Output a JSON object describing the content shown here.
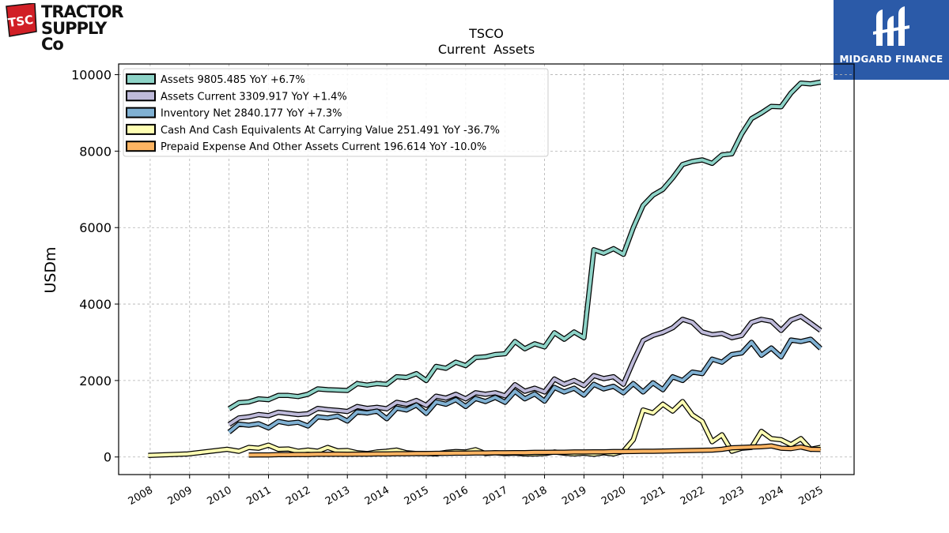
{
  "logos": {
    "tractor_supply": {
      "badge": "TSC",
      "line1": "TRACTOR",
      "line2": "SUPPLY Co"
    },
    "midgard": {
      "name": "MIDGARD FINANCE",
      "color": "#2b5aa8"
    }
  },
  "chart_data": {
    "type": "line",
    "title": "TSCO",
    "subtitle": "Current  Assets",
    "ylabel": "USDm",
    "xlabel": "",
    "xlim": [
      2007.2,
      2025.85
    ],
    "ylim": [
      -460,
      10280
    ],
    "yticks": [
      0,
      2000,
      4000,
      6000,
      8000,
      10000
    ],
    "xticks": [
      "2008",
      "2009",
      "2010",
      "2011",
      "2012",
      "2013",
      "2014",
      "2015",
      "2016",
      "2017",
      "2018",
      "2019",
      "2020",
      "2021",
      "2022",
      "2023",
      "2024",
      "2025"
    ],
    "grid": true,
    "legend_position": "top-left",
    "series": [
      {
        "name": "Assets  9805.485 YoY +6.7%",
        "color": "#8dd3c7",
        "x": [
          2010.0,
          2010.25,
          2010.5,
          2010.75,
          2011.0,
          2011.25,
          2011.5,
          2011.75,
          2012.0,
          2012.25,
          2012.5,
          2012.75,
          2013.0,
          2013.25,
          2013.5,
          2013.75,
          2014.0,
          2014.25,
          2014.5,
          2014.75,
          2015.0,
          2015.25,
          2015.5,
          2015.75,
          2016.0,
          2016.25,
          2016.5,
          2016.75,
          2017.0,
          2017.25,
          2017.5,
          2017.75,
          2018.0,
          2018.25,
          2018.5,
          2018.75,
          2019.0,
          2019.25,
          2019.5,
          2019.75,
          2020.0,
          2020.25,
          2020.5,
          2020.75,
          2021.0,
          2021.25,
          2021.5,
          2021.75,
          2022.0,
          2022.25,
          2022.5,
          2022.75,
          2023.0,
          2023.25,
          2023.5,
          2023.75,
          2024.0,
          2024.25,
          2024.5,
          2024.75,
          2025.0
        ],
        "y": [
          1260,
          1420,
          1440,
          1520,
          1500,
          1610,
          1610,
          1580,
          1640,
          1780,
          1760,
          1750,
          1740,
          1920,
          1880,
          1920,
          1900,
          2100,
          2080,
          2180,
          2000,
          2370,
          2320,
          2480,
          2390,
          2600,
          2620,
          2680,
          2700,
          3020,
          2830,
          2960,
          2880,
          3250,
          3080,
          3270,
          3120,
          5420,
          5330,
          5450,
          5300,
          6000,
          6580,
          6850,
          7000,
          7300,
          7650,
          7730,
          7770,
          7680,
          7900,
          7930,
          8450,
          8850,
          9000,
          9170,
          9160,
          9520,
          9780,
          9760,
          9805
        ]
      },
      {
        "name": "Assets Current  3309.917 YoY +1.4%",
        "color": "#bebada",
        "x": [
          2010.0,
          2010.25,
          2010.5,
          2010.75,
          2011.0,
          2011.25,
          2011.5,
          2011.75,
          2012.0,
          2012.25,
          2012.5,
          2012.75,
          2013.0,
          2013.25,
          2013.5,
          2013.75,
          2014.0,
          2014.25,
          2014.5,
          2014.75,
          2015.0,
          2015.25,
          2015.5,
          2015.75,
          2016.0,
          2016.25,
          2016.5,
          2016.75,
          2017.0,
          2017.25,
          2017.5,
          2017.75,
          2018.0,
          2018.25,
          2018.5,
          2018.75,
          2019.0,
          2019.25,
          2019.5,
          2019.75,
          2020.0,
          2020.25,
          2020.5,
          2020.75,
          2021.0,
          2021.25,
          2021.5,
          2021.75,
          2022.0,
          2022.25,
          2022.5,
          2022.75,
          2023.0,
          2023.25,
          2023.5,
          2023.75,
          2024.0,
          2024.25,
          2024.5,
          2024.75,
          2025.0
        ],
        "y": [
          850,
          1020,
          1050,
          1110,
          1080,
          1170,
          1140,
          1110,
          1130,
          1270,
          1240,
          1220,
          1190,
          1320,
          1270,
          1300,
          1260,
          1430,
          1380,
          1480,
          1350,
          1590,
          1540,
          1640,
          1520,
          1680,
          1640,
          1680,
          1600,
          1890,
          1720,
          1800,
          1700,
          2040,
          1900,
          2000,
          1870,
          2130,
          2050,
          2100,
          1900,
          2500,
          3050,
          3180,
          3260,
          3380,
          3600,
          3520,
          3270,
          3200,
          3230,
          3120,
          3180,
          3520,
          3600,
          3550,
          3310,
          3580,
          3680,
          3500,
          3310
        ]
      },
      {
        "name": "Inventory Net  2840.177 YoY +7.3%",
        "color": "#80b1d3",
        "x": [
          2010.0,
          2010.25,
          2010.5,
          2010.75,
          2011.0,
          2011.25,
          2011.5,
          2011.75,
          2012.0,
          2012.25,
          2012.5,
          2012.75,
          2013.0,
          2013.25,
          2013.5,
          2013.75,
          2014.0,
          2014.25,
          2014.5,
          2014.75,
          2015.0,
          2015.25,
          2015.5,
          2015.75,
          2016.0,
          2016.25,
          2016.5,
          2016.75,
          2017.0,
          2017.25,
          2017.5,
          2017.75,
          2018.0,
          2018.25,
          2018.5,
          2018.75,
          2019.0,
          2019.25,
          2019.5,
          2019.75,
          2020.0,
          2020.25,
          2020.5,
          2020.75,
          2021.0,
          2021.25,
          2021.5,
          2021.75,
          2022.0,
          2022.25,
          2022.5,
          2022.75,
          2023.0,
          2023.25,
          2023.5,
          2023.75,
          2024.0,
          2024.25,
          2024.5,
          2024.75,
          2025.0
        ],
        "y": [
          650,
          860,
          830,
          870,
          760,
          930,
          880,
          910,
          810,
          1050,
          1020,
          1070,
          940,
          1180,
          1150,
          1200,
          1000,
          1280,
          1230,
          1360,
          1140,
          1440,
          1380,
          1500,
          1320,
          1530,
          1450,
          1560,
          1430,
          1720,
          1520,
          1650,
          1460,
          1820,
          1700,
          1800,
          1620,
          1900,
          1780,
          1850,
          1680,
          1920,
          1700,
          1940,
          1760,
          2100,
          2000,
          2220,
          2180,
          2560,
          2480,
          2680,
          2720,
          3000,
          2660,
          2850,
          2620,
          3060,
          3020,
          3080,
          2840
        ]
      },
      {
        "name": "Cash And Cash Equivalents At Carrying Value  251.491 YoY -36.7%",
        "color": "#ffffb3",
        "x": [
          2007.95,
          2008.95,
          2009.95,
          2010.25,
          2010.5,
          2010.75,
          2011.0,
          2011.25,
          2011.5,
          2011.75,
          2012.0,
          2012.25,
          2012.5,
          2012.75,
          2013.0,
          2013.25,
          2013.5,
          2013.75,
          2014.0,
          2014.25,
          2014.5,
          2014.75,
          2015.0,
          2015.25,
          2015.5,
          2015.75,
          2016.0,
          2016.25,
          2016.5,
          2016.75,
          2017.0,
          2017.25,
          2017.5,
          2017.75,
          2018.0,
          2018.25,
          2018.5,
          2018.75,
          2019.0,
          2019.25,
          2019.5,
          2019.75,
          2020.0,
          2020.25,
          2020.5,
          2020.75,
          2021.0,
          2021.25,
          2021.5,
          2021.75,
          2022.0,
          2022.25,
          2022.5,
          2022.75,
          2023.0,
          2023.25,
          2023.5,
          2023.75,
          2024.0,
          2024.25,
          2024.5,
          2024.75,
          2025.0
        ],
        "y": [
          40,
          80,
          200,
          150,
          250,
          230,
          310,
          200,
          210,
          150,
          180,
          150,
          250,
          160,
          170,
          110,
          90,
          130,
          150,
          180,
          110,
          90,
          90,
          80,
          120,
          140,
          130,
          190,
          90,
          110,
          90,
          100,
          80,
          80,
          90,
          130,
          100,
          80,
          100,
          70,
          110,
          80,
          150,
          450,
          1230,
          1150,
          1380,
          1200,
          1450,
          1100,
          930,
          400,
          580,
          150,
          230,
          250,
          670,
          480,
          450,
          320,
          480,
          200,
          251
        ]
      },
      {
        "name": "Prepaid Expense And Other Assets Current  196.614 YoY -10.0%",
        "color": "#fdb462",
        "x": [
          2010.5,
          2010.75,
          2011.0,
          2011.25,
          2011.5,
          2011.75,
          2012.0,
          2012.25,
          2012.5,
          2012.75,
          2013.0,
          2013.25,
          2013.5,
          2013.75,
          2014.0,
          2014.25,
          2014.5,
          2014.75,
          2015.0,
          2015.25,
          2015.5,
          2015.75,
          2016.0,
          2016.25,
          2016.5,
          2016.75,
          2017.0,
          2017.25,
          2017.5,
          2017.75,
          2018.0,
          2018.25,
          2018.5,
          2018.75,
          2019.0,
          2019.25,
          2019.5,
          2019.75,
          2020.0,
          2020.25,
          2020.5,
          2020.75,
          2021.0,
          2021.25,
          2021.5,
          2021.75,
          2022.0,
          2022.25,
          2022.5,
          2022.75,
          2023.0,
          2023.25,
          2023.5,
          2023.75,
          2024.0,
          2024.25,
          2024.5,
          2024.75,
          2025.0
        ],
        "y": [
          50,
          55,
          55,
          60,
          60,
          65,
          65,
          70,
          70,
          75,
          70,
          75,
          75,
          80,
          80,
          85,
          85,
          90,
          90,
          95,
          95,
          100,
          100,
          105,
          105,
          110,
          110,
          115,
          115,
          120,
          120,
          125,
          125,
          130,
          130,
          135,
          135,
          140,
          140,
          145,
          150,
          150,
          155,
          160,
          165,
          170,
          175,
          180,
          200,
          240,
          250,
          260,
          270,
          290,
          230,
          220,
          260,
          200,
          197
        ]
      }
    ]
  }
}
